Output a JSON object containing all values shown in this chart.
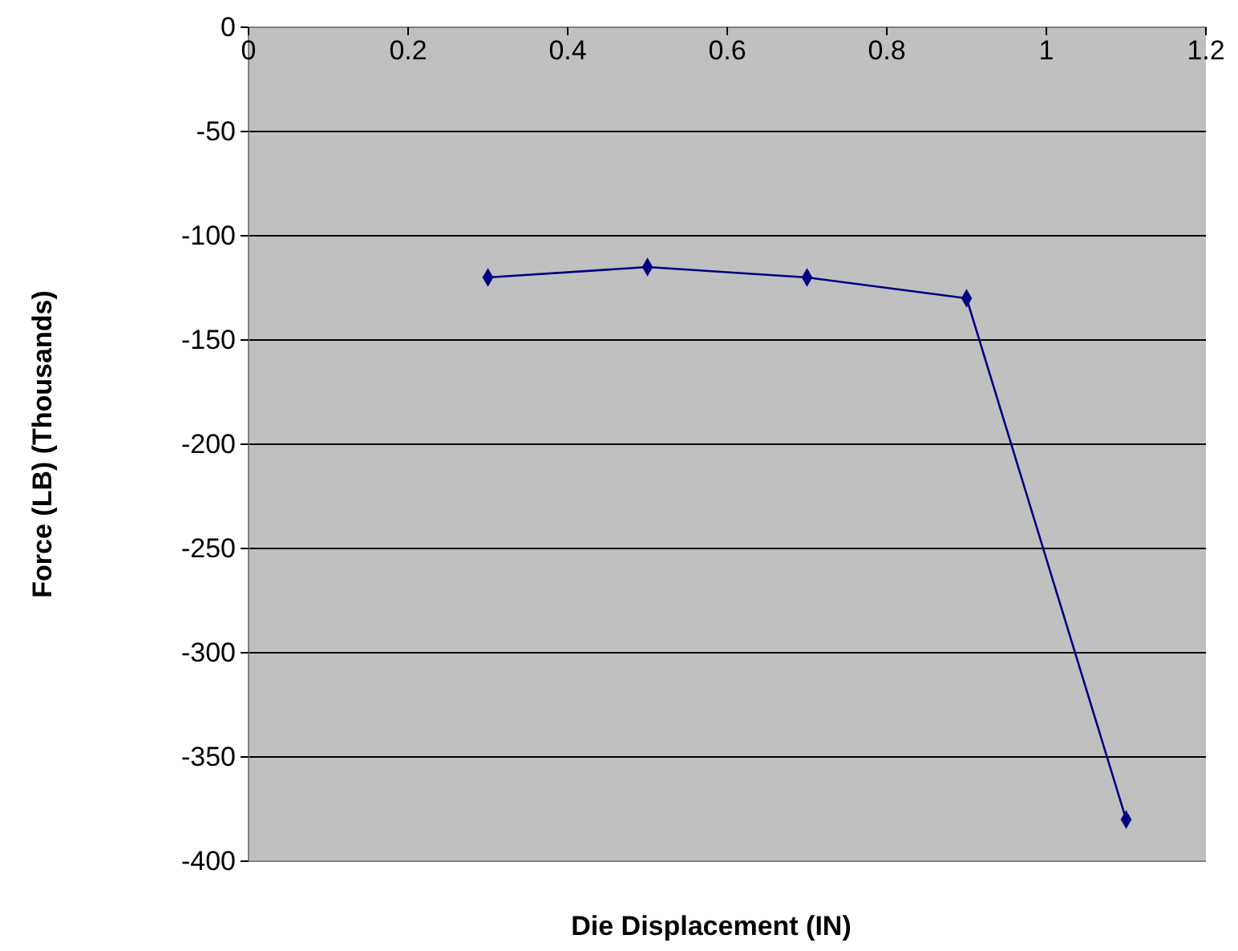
{
  "chart_data": {
    "type": "line",
    "xlabel": "Die Displacement (IN)",
    "ylabel": "Force (LB) (Thousands)",
    "x": [
      0.3,
      0.5,
      0.7,
      0.9,
      1.1
    ],
    "series": [
      {
        "color": "#000080",
        "values": [
          -120,
          -115,
          -120,
          -130,
          -380
        ]
      }
    ],
    "xlim": [
      0,
      1.2
    ],
    "xticks": [
      0,
      0.2,
      0.4,
      0.6,
      0.8,
      1,
      1.2
    ],
    "ylim": [
      -400,
      0
    ],
    "yticks": [
      0,
      -50,
      -100,
      -150,
      -200,
      -250,
      -300,
      -350,
      -400
    ],
    "grid": "y",
    "marker": "diamond",
    "line_style": "solid"
  }
}
